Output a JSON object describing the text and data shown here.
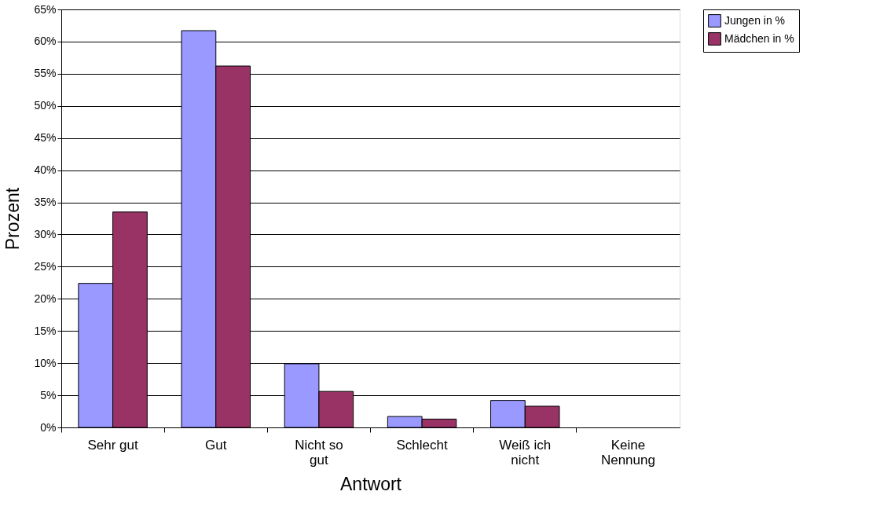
{
  "chart_data": {
    "type": "bar",
    "xlabel": "Antwort",
    "ylabel": "Prozent",
    "categories": [
      "Sehr gut",
      "Gut",
      "Nicht so gut",
      "Schlecht",
      "Weiß ich nicht",
      "Keine Nennung"
    ],
    "series": [
      {
        "name": "Jungen in %",
        "color": "#9999ff",
        "values": [
          22.4,
          61.7,
          9.9,
          1.7,
          4.2,
          0
        ]
      },
      {
        "name": "Mädchen in %",
        "color": "#993366",
        "values": [
          33.5,
          56.2,
          5.6,
          1.3,
          3.3,
          0
        ]
      }
    ],
    "ylim": [
      0,
      65
    ],
    "yticks": [
      {
        "value": 0,
        "label": "0%"
      },
      {
        "value": 5,
        "label": "5%"
      },
      {
        "value": 10,
        "label": "10%"
      },
      {
        "value": 15,
        "label": "15%"
      },
      {
        "value": 20,
        "label": "20%"
      },
      {
        "value": 25,
        "label": "25%"
      },
      {
        "value": 30,
        "label": "30%"
      },
      {
        "value": 35,
        "label": "35%"
      },
      {
        "value": 40,
        "label": "40%"
      },
      {
        "value": 45,
        "label": "45%"
      },
      {
        "value": 50,
        "label": "50%"
      },
      {
        "value": 55,
        "label": "55%"
      },
      {
        "value": 60,
        "label": "60%"
      },
      {
        "value": 65,
        "label": "65%"
      }
    ],
    "grid": "y",
    "legend": "right"
  }
}
